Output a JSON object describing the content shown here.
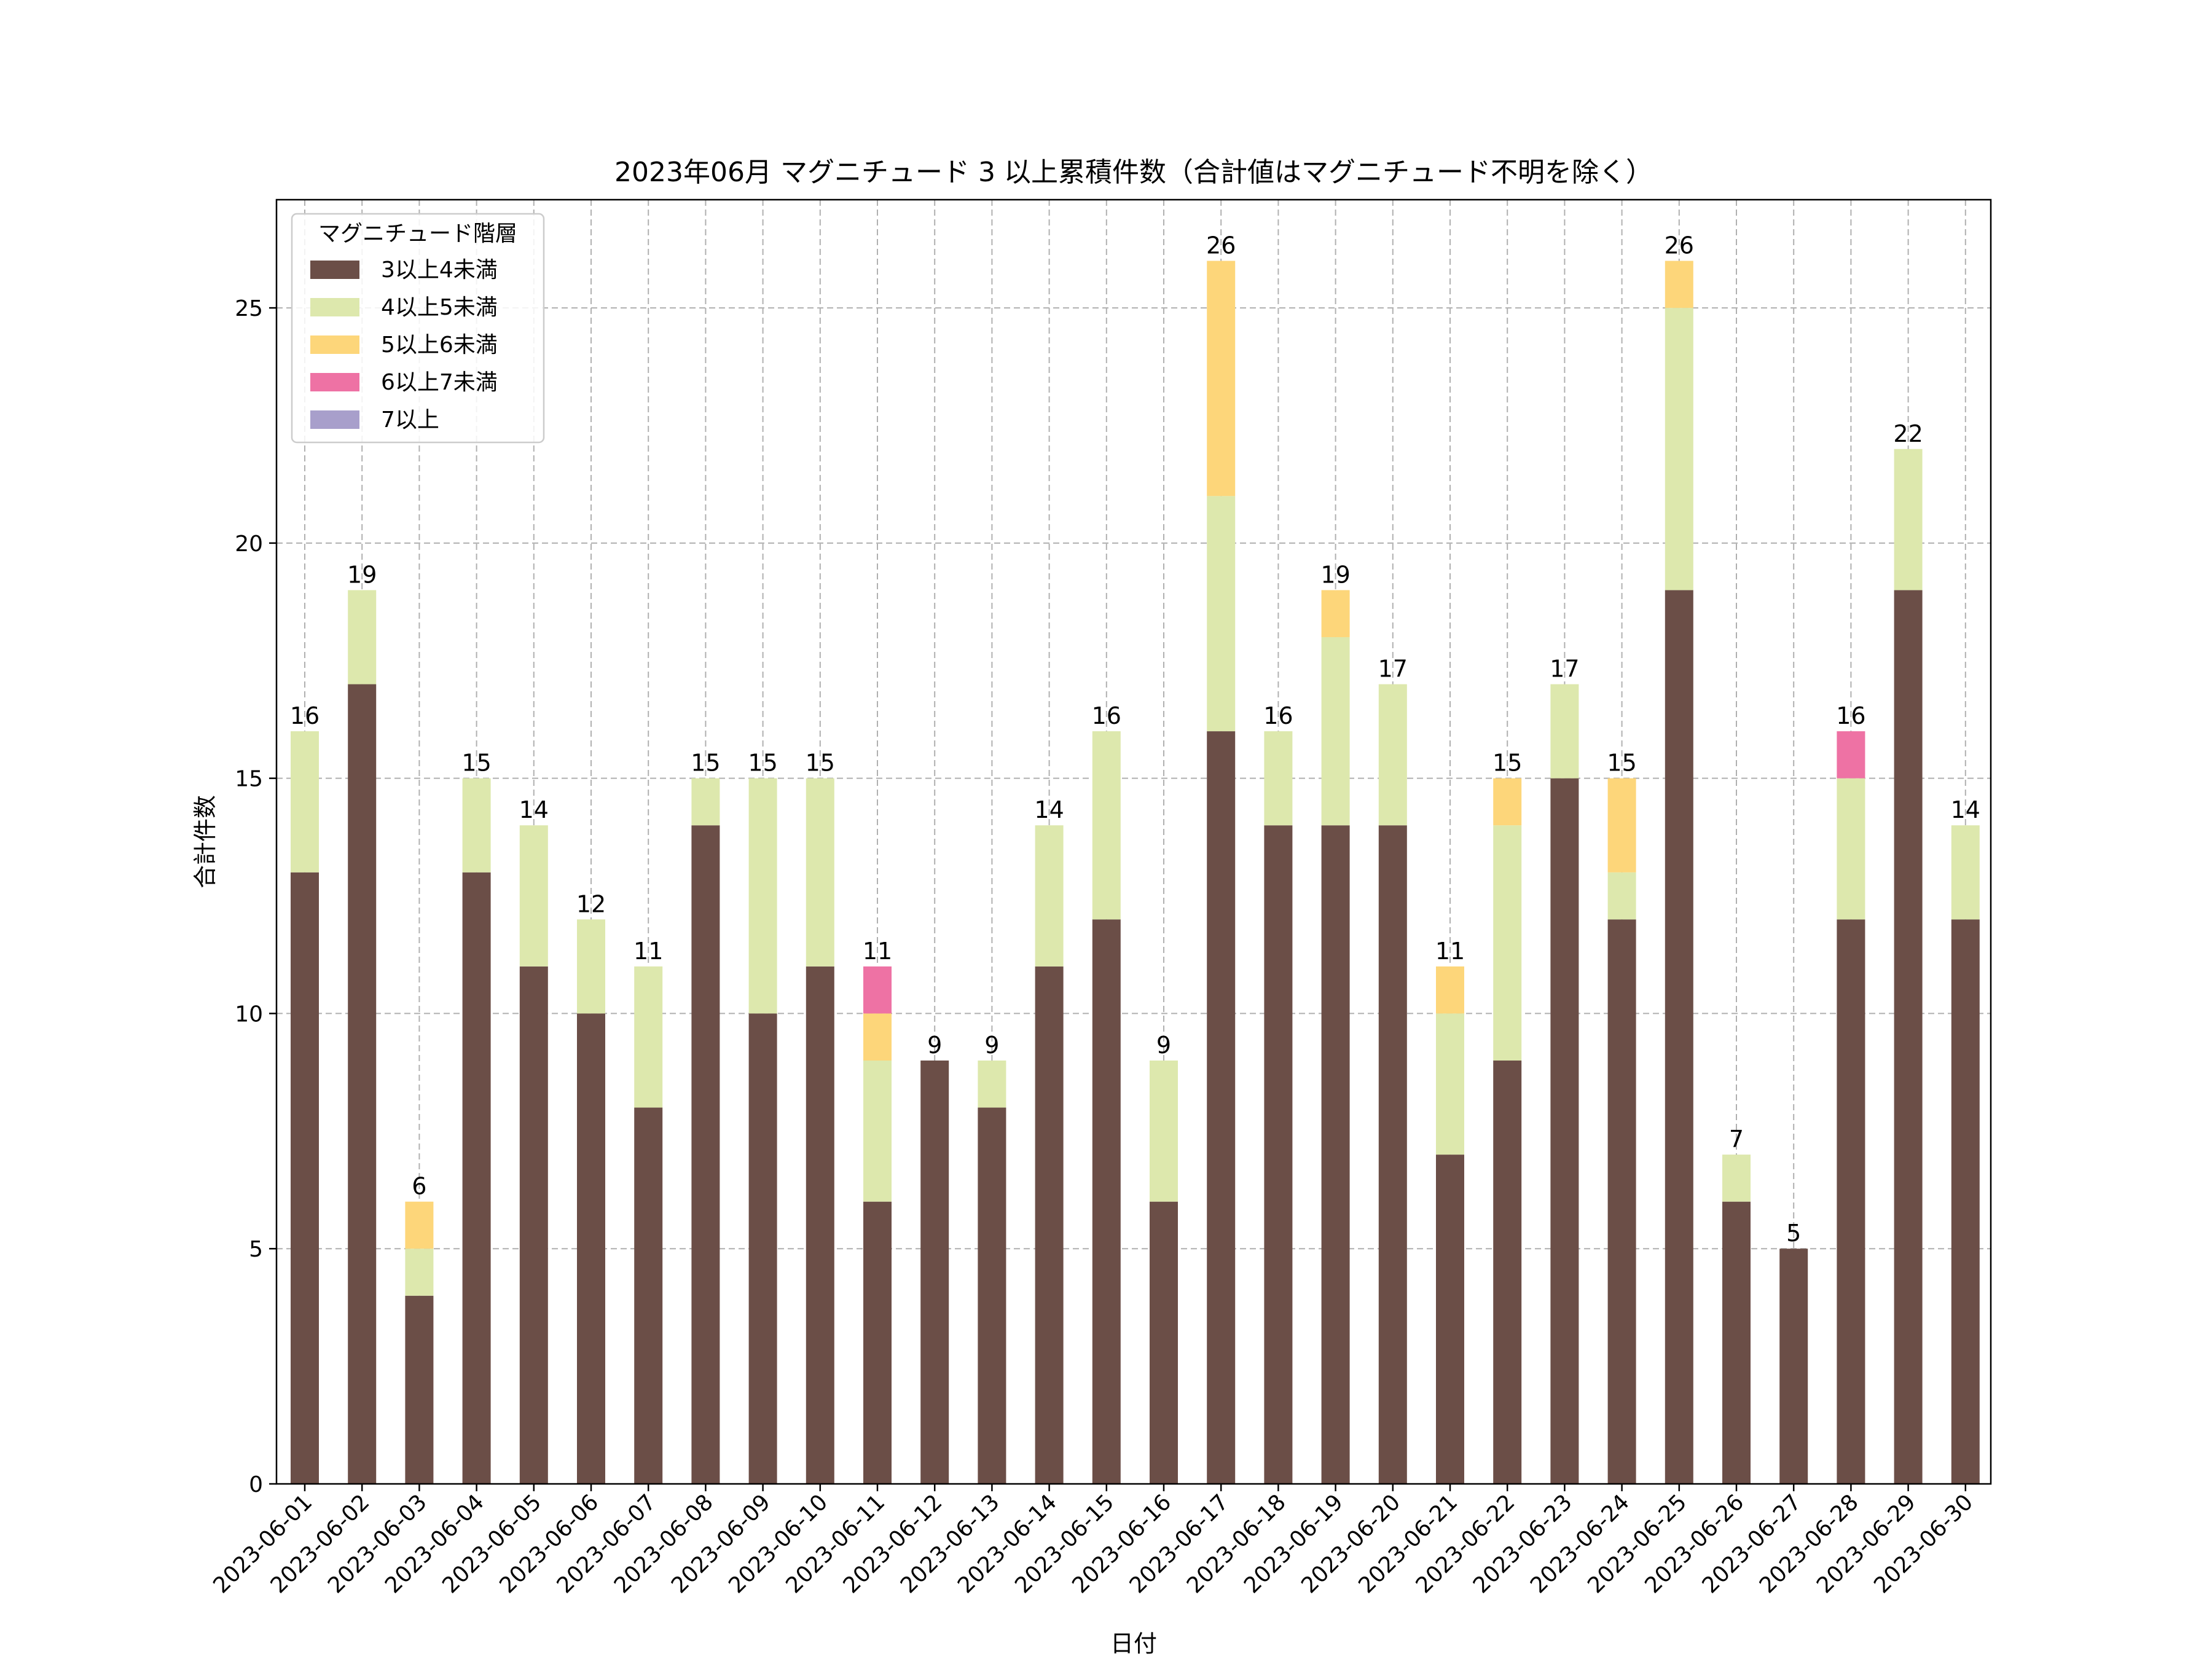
{
  "chart_data": {
    "type": "bar",
    "stacked": true,
    "title": "2023年06月 マグニチュード 3 以上累積件数（合計値はマグニチュード不明を除く）",
    "xlabel": "日付",
    "ylabel": "合計件数",
    "ylim": [
      0,
      27.3
    ],
    "yticks": [
      0,
      5,
      10,
      15,
      20,
      25
    ],
    "grid": true,
    "legend_title": "マグニチュード階層",
    "legend_position": "top-left",
    "categories": [
      "2023-06-01",
      "2023-06-02",
      "2023-06-03",
      "2023-06-04",
      "2023-06-05",
      "2023-06-06",
      "2023-06-07",
      "2023-06-08",
      "2023-06-09",
      "2023-06-10",
      "2023-06-11",
      "2023-06-12",
      "2023-06-13",
      "2023-06-14",
      "2023-06-15",
      "2023-06-16",
      "2023-06-17",
      "2023-06-18",
      "2023-06-19",
      "2023-06-20",
      "2023-06-21",
      "2023-06-22",
      "2023-06-23",
      "2023-06-24",
      "2023-06-25",
      "2023-06-26",
      "2023-06-27",
      "2023-06-28",
      "2023-06-29",
      "2023-06-30"
    ],
    "series": [
      {
        "name": "3以上4未満",
        "color": "#6b4e47",
        "values": [
          13,
          17,
          4,
          13,
          11,
          10,
          8,
          14,
          10,
          11,
          6,
          9,
          8,
          11,
          12,
          6,
          16,
          14,
          14,
          14,
          7,
          9,
          15,
          12,
          19,
          6,
          5,
          12,
          19,
          12
        ]
      },
      {
        "name": "4以上5未満",
        "color": "#dde8ad",
        "values": [
          3,
          2,
          1,
          2,
          3,
          2,
          3,
          1,
          5,
          4,
          3,
          0,
          1,
          3,
          4,
          3,
          5,
          2,
          4,
          3,
          3,
          5,
          2,
          1,
          6,
          1,
          0,
          3,
          3,
          2
        ]
      },
      {
        "name": "5以上6未満",
        "color": "#fdd67a",
        "values": [
          0,
          0,
          1,
          0,
          0,
          0,
          0,
          0,
          0,
          0,
          1,
          0,
          0,
          0,
          0,
          0,
          5,
          0,
          1,
          0,
          1,
          1,
          0,
          2,
          1,
          0,
          0,
          0,
          0,
          0
        ]
      },
      {
        "name": "6以上7未満",
        "color": "#ee72a4",
        "values": [
          0,
          0,
          0,
          0,
          0,
          0,
          0,
          0,
          0,
          0,
          1,
          0,
          0,
          0,
          0,
          0,
          0,
          0,
          0,
          0,
          0,
          0,
          0,
          0,
          0,
          0,
          0,
          1,
          0,
          0
        ]
      },
      {
        "name": "7以上",
        "color": "#a89fcb",
        "values": [
          0,
          0,
          0,
          0,
          0,
          0,
          0,
          0,
          0,
          0,
          0,
          0,
          0,
          0,
          0,
          0,
          0,
          0,
          0,
          0,
          0,
          0,
          0,
          0,
          0,
          0,
          0,
          0,
          0,
          0
        ]
      }
    ],
    "totals": [
      16,
      19,
      6,
      15,
      14,
      12,
      11,
      15,
      15,
      15,
      11,
      9,
      9,
      14,
      16,
      9,
      26,
      16,
      19,
      17,
      11,
      15,
      17,
      15,
      26,
      7,
      5,
      16,
      22,
      14
    ]
  }
}
